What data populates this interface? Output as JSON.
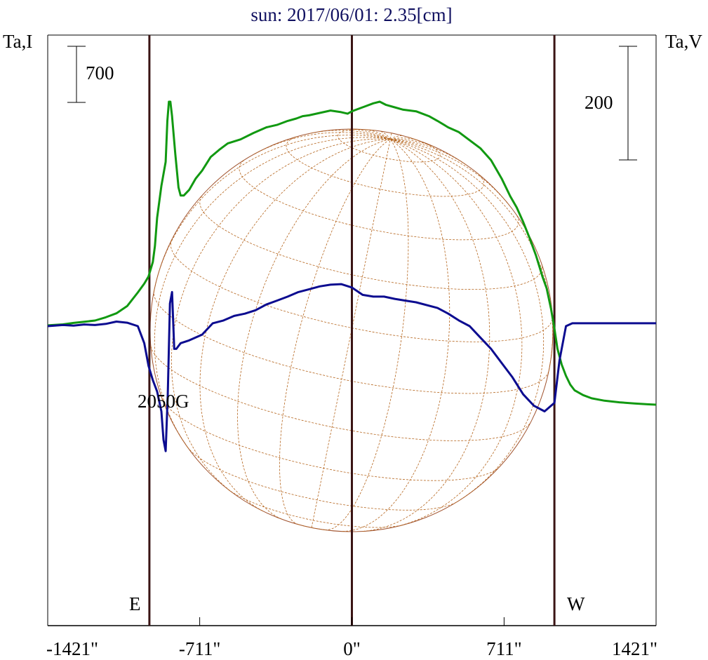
{
  "chart_data": {
    "type": "line",
    "title": "sun: 2017/06/01: 2.35[cm]",
    "ylabel_left": "Ta,I",
    "ylabel_right": "Ta,V",
    "x_ticks": [
      "-1421\"",
      "-711\"",
      "0\"",
      "711\"",
      "1421\""
    ],
    "x_tick_values": [
      -1421,
      -711,
      0,
      711,
      1421
    ],
    "xlim": [
      -1421,
      1421
    ],
    "scale_bar_left": "700",
    "scale_bar_right": "200",
    "limb_labels": {
      "east": "E",
      "west": "W"
    },
    "vertical_lines_x": [
      -946,
      0,
      946
    ],
    "annotation": {
      "text": "2050G",
      "x": -860
    },
    "grid": false,
    "series": [
      {
        "color": "#119911",
        "x": [
          -1421,
          -1350,
          -1300,
          -1250,
          -1200,
          -1150,
          -1100,
          -1050,
          -1000,
          -970,
          -950,
          -930,
          -920,
          -910,
          -890,
          -870,
          -862,
          -855,
          -848,
          -840,
          -825,
          -810,
          -800,
          -785,
          -760,
          -730,
          -700,
          -660,
          -620,
          -580,
          -520,
          -460,
          -400,
          -350,
          -300,
          -260,
          -230,
          -200,
          -150,
          -100,
          -50,
          -20,
          0,
          20,
          60,
          100,
          130,
          160,
          200,
          240,
          300,
          360,
          400,
          450,
          500,
          550,
          600,
          650,
          700,
          740,
          770,
          800,
          830,
          860,
          890,
          910,
          930,
          946,
          960,
          980,
          1000,
          1020,
          1040,
          1080,
          1120,
          1180,
          1250,
          1320,
          1380,
          1421
        ],
        "values": [
          10,
          22,
          40,
          55,
          70,
          110,
          160,
          250,
          420,
          530,
          620,
          800,
          1000,
          1350,
          1750,
          2050,
          2560,
          2800,
          2800,
          2620,
          2150,
          1730,
          1630,
          1630,
          1700,
          1840,
          1940,
          2110,
          2200,
          2280,
          2330,
          2410,
          2480,
          2510,
          2560,
          2590,
          2620,
          2630,
          2660,
          2690,
          2670,
          2650,
          2680,
          2700,
          2740,
          2780,
          2800,
          2760,
          2730,
          2700,
          2680,
          2620,
          2560,
          2480,
          2420,
          2320,
          2220,
          2070,
          1840,
          1620,
          1480,
          1300,
          1100,
          880,
          620,
          470,
          220,
          -30,
          -280,
          -480,
          -620,
          -730,
          -800,
          -860,
          -900,
          -930,
          -950,
          -965,
          -975,
          -980
        ]
      },
      {
        "color": "#0c0c90",
        "x": [
          -1421,
          -1350,
          -1300,
          -1250,
          -1200,
          -1150,
          -1100,
          -1050,
          -1000,
          -970,
          -950,
          -930,
          -910,
          -890,
          -880,
          -870,
          -860,
          -850,
          -840,
          -830,
          -820,
          -800,
          -760,
          -700,
          -650,
          -600,
          -550,
          -500,
          -450,
          -400,
          -350,
          -300,
          -250,
          -200,
          -150,
          -100,
          -50,
          0,
          50,
          100,
          150,
          200,
          250,
          300,
          400,
          450,
          500,
          550,
          600,
          650,
          700,
          750,
          800,
          850,
          900,
          946,
          970,
          1000,
          1030,
          1060,
          1100,
          1200,
          1300,
          1421
        ],
        "values": [
          0,
          2,
          1,
          3,
          2,
          4,
          8,
          6,
          0,
          -30,
          -70,
          -95,
          -115,
          -150,
          -200,
          -220,
          -120,
          40,
          60,
          -40,
          -40,
          -30,
          -25,
          -15,
          5,
          10,
          18,
          22,
          28,
          38,
          45,
          52,
          60,
          65,
          70,
          73,
          74,
          68,
          55,
          52,
          52,
          48,
          45,
          42,
          32,
          22,
          10,
          0,
          -20,
          -40,
          -65,
          -90,
          -120,
          -140,
          -150,
          -135,
          -60,
          0,
          5,
          5,
          5,
          5,
          5,
          5
        ]
      }
    ]
  }
}
